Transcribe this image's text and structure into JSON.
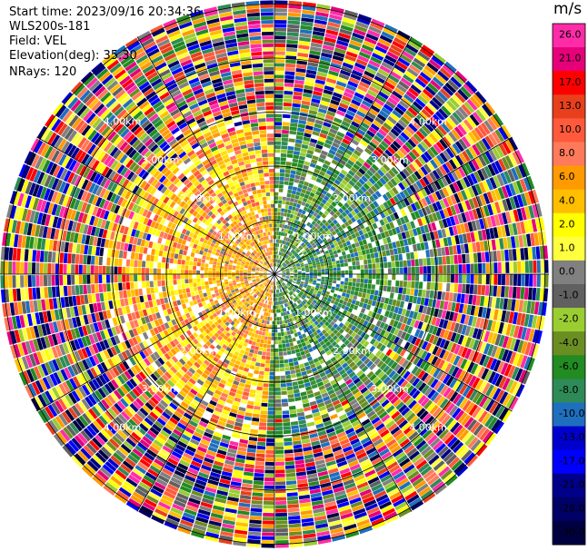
{
  "header": {
    "start_time": "Start time: 2023/09/16 20:34:36",
    "instrument": "WLS200s-181",
    "field": "Field: VEL",
    "elevation": "Elevation(deg): 35.30",
    "nrays": "NRays: 120"
  },
  "chart_data": {
    "type": "heatmap",
    "projection": "polar-ppi",
    "field": "VEL",
    "unit": "m/s",
    "n_rays": 120,
    "elevation_deg": 35.3,
    "range_rings": [
      {
        "label": "1.00km"
      },
      {
        "label": "2.00km"
      },
      {
        "label": "3.00km"
      },
      {
        "label": "4.00km"
      }
    ],
    "colorbar": {
      "ticks": [
        "26.0",
        "21.0",
        "17.0",
        "13.0",
        "10.0",
        "8.0",
        "6.0",
        "4.0",
        "2.0",
        "1.0",
        "0.0",
        "-1.0",
        "-2.0",
        "-4.0",
        "-6.0",
        "-8.0",
        "-10.0",
        "-13.0",
        "-17.0",
        "-21.0",
        "-26.0",
        "-30.0"
      ],
      "colors": [
        "#ff2ca8",
        "#e6007a",
        "#ff0000",
        "#e8401c",
        "#ff5a3c",
        "#ff7a5a",
        "#ff9a00",
        "#ffbf00",
        "#ffff00",
        "#ffff40",
        "#808080",
        "#606060",
        "#9acd32",
        "#6b8e23",
        "#228b22",
        "#2e8b57",
        "#1e6fbe",
        "#0000cd",
        "#0000ff",
        "#00008b",
        "#000066",
        "#000040"
      ]
    },
    "pattern": {
      "positive_sector_deg": [
        180,
        360
      ],
      "negative_sector_deg": [
        0,
        180
      ],
      "description": "radial velocity pattern: warm colors (receding) in west half, greens/blues (approaching) in east half, noisy speckle at outer ranges"
    }
  }
}
